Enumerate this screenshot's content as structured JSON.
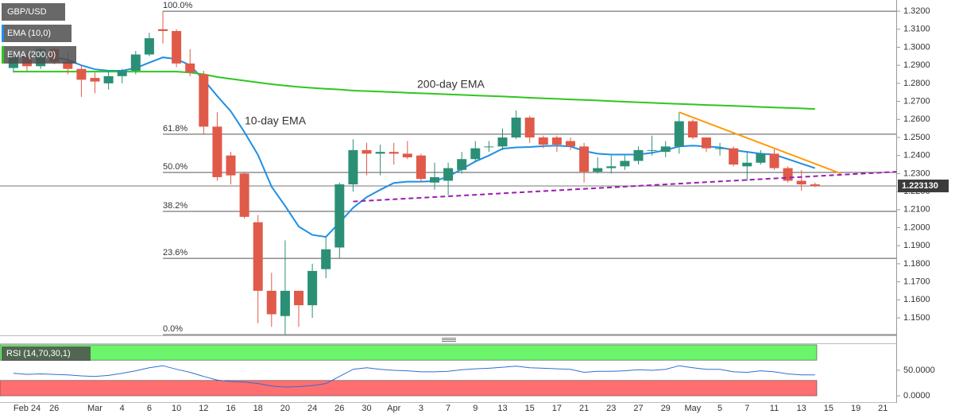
{
  "chart_data": [
    {
      "type": "candlestick",
      "categories": [
        null,
        "Feb 24",
        null,
        "26",
        null,
        null,
        "Mar",
        null,
        "4",
        null,
        "6",
        null,
        "10",
        null,
        "12",
        null,
        "16",
        null,
        "18",
        null,
        "20",
        null,
        "24",
        null,
        "26",
        null,
        "30",
        null,
        "Apr",
        null,
        "3",
        null,
        "7",
        null,
        "9",
        null,
        "13",
        null,
        "15",
        null,
        "17",
        null,
        "21",
        null,
        "23",
        null,
        "27",
        null,
        "29",
        null,
        "May",
        null,
        "5",
        null,
        "7",
        null,
        "11",
        null,
        "13",
        null,
        "15",
        null,
        "19",
        null,
        "21"
      ],
      "series": [
        {
          "name": "GBP/USD",
          "up_color": "#2b8f76",
          "down_color": "#e05a4a",
          "open": [
            1.2885,
            1.295,
            1.2895,
            1.299,
            1.292,
            1.288,
            1.283,
            1.28,
            1.284,
            1.287,
            1.296,
            1.31,
            1.309,
            1.291,
            1.285,
            1.256,
            1.24,
            1.23,
            1.203,
            1.165,
            1.151,
            1.165,
            1.157,
            1.177,
            1.189,
            1.224,
            1.243,
            1.241,
            1.242,
            1.241,
            1.24,
            1.225,
            1.226,
            1.232,
            1.238,
            1.245,
            1.245,
            1.25,
            1.261,
            1.25,
            1.25,
            1.248,
            1.245,
            1.231,
            1.233,
            1.234,
            1.237,
            1.243,
            1.242,
            1.245,
            1.259,
            1.25,
            1.244,
            1.244,
            1.234,
            1.236,
            1.241,
            1.233,
            1.226,
            1.224,
            null,
            null,
            null,
            null,
            null
          ],
          "high": [
            1.298,
            1.2985,
            1.3,
            1.3,
            1.297,
            1.29,
            1.286,
            1.287,
            1.288,
            1.298,
            1.308,
            1.32,
            1.31,
            1.299,
            1.287,
            1.264,
            1.242,
            1.231,
            1.207,
            1.175,
            1.193,
            1.165,
            1.18,
            1.195,
            1.225,
            1.249,
            1.247,
            1.246,
            1.247,
            1.248,
            1.241,
            1.236,
            1.236,
            1.242,
            1.248,
            1.248,
            1.255,
            1.265,
            1.262,
            1.251,
            1.251,
            1.25,
            1.247,
            1.239,
            1.24,
            1.24,
            1.245,
            1.251,
            1.248,
            1.264,
            1.26,
            1.25,
            1.247,
            1.245,
            1.242,
            1.243,
            1.244,
            1.234,
            1.232,
            1.225,
            null,
            null,
            null,
            null,
            null
          ],
          "low": [
            1.286,
            1.287,
            1.288,
            1.2905,
            1.285,
            1.2725,
            1.2745,
            1.2765,
            1.28,
            1.285,
            1.295,
            1.302,
            1.289,
            1.284,
            1.252,
            1.226,
            1.224,
            1.205,
            1.147,
            1.145,
            1.141,
            1.145,
            1.15,
            1.172,
            1.183,
            1.22,
            1.229,
            1.229,
            1.235,
            1.238,
            1.225,
            1.221,
            1.218,
            1.23,
            1.237,
            1.242,
            1.243,
            1.249,
            1.247,
            1.244,
            1.242,
            1.243,
            1.225,
            1.23,
            1.23,
            1.232,
            1.235,
            1.24,
            1.239,
            1.241,
            1.249,
            1.242,
            1.24,
            1.234,
            1.226,
            1.235,
            1.232,
            1.225,
            1.2205,
            1.2225,
            null,
            null,
            null,
            null,
            null
          ],
          "close": [
            1.2955,
            1.2895,
            1.299,
            1.292,
            1.288,
            1.282,
            1.281,
            1.284,
            1.287,
            1.296,
            1.305,
            1.309,
            1.291,
            1.286,
            1.256,
            1.228,
            1.229,
            1.206,
            1.165,
            1.152,
            1.165,
            1.157,
            1.176,
            1.188,
            1.224,
            1.243,
            1.241,
            1.242,
            1.241,
            1.239,
            1.227,
            1.228,
            1.233,
            1.238,
            1.244,
            1.245,
            1.25,
            1.261,
            1.25,
            1.246,
            1.246,
            1.245,
            1.231,
            1.233,
            1.234,
            1.237,
            1.243,
            1.243,
            1.245,
            1.259,
            1.25,
            1.244,
            1.244,
            1.235,
            1.236,
            1.241,
            1.233,
            1.226,
            1.224,
            1.2231,
            null,
            null,
            null,
            null,
            null
          ]
        },
        {
          "name": "EMA (10,0)",
          "color": "#1f8fe5",
          "values": [
            1.2955,
            1.2945,
            1.295,
            1.2945,
            1.293,
            1.29,
            1.2878,
            1.287,
            1.287,
            1.2885,
            1.2915,
            1.2944,
            1.2935,
            1.29,
            1.282,
            1.273,
            1.2645,
            1.253,
            1.2403,
            1.2227,
            1.212,
            1.2006,
            1.196,
            1.1949,
            1.2028,
            1.211,
            1.2169,
            1.221,
            1.2248,
            1.2255,
            1.2255,
            1.2258,
            1.2283,
            1.2325,
            1.2367,
            1.24,
            1.2438,
            1.2445,
            1.2447,
            1.2452,
            1.2455,
            1.245,
            1.2425,
            1.241,
            1.2405,
            1.2405,
            1.2405,
            1.2415,
            1.243,
            1.245,
            1.2455,
            1.245,
            1.2445,
            1.243,
            1.242,
            1.241,
            1.2405,
            1.238,
            1.2355,
            1.233,
            null,
            null,
            null,
            null,
            null
          ]
        },
        {
          "name": "EMA (200,0)",
          "color": "#2fc61f",
          "values": [
            1.2865,
            1.2865,
            1.2865,
            1.2865,
            1.2865,
            1.2865,
            1.2865,
            1.2865,
            1.2865,
            1.2865,
            1.2865,
            1.2865,
            1.2865,
            1.286,
            1.285,
            1.2835,
            1.2825,
            1.2815,
            1.2805,
            1.2795,
            1.2787,
            1.278,
            1.2775,
            1.277,
            1.2766,
            1.276,
            1.2757,
            1.2754,
            1.2751,
            1.2748,
            1.2745,
            1.2742,
            1.2739,
            1.2736,
            1.2733,
            1.273,
            1.2727,
            1.2724,
            1.272,
            1.2717,
            1.2714,
            1.2711,
            1.2708,
            1.2705,
            1.2701,
            1.2698,
            1.2695,
            1.2692,
            1.2689,
            1.2686,
            1.2683,
            1.268,
            1.2678,
            1.2675,
            1.2672,
            1.2669,
            1.2666,
            1.2664,
            1.2661,
            1.2658,
            null,
            null,
            null,
            null,
            null
          ]
        }
      ],
      "annotations": [
        "10-day EMA",
        "200-day EMA"
      ],
      "fib_levels": [
        {
          "value": 1.32,
          "label": "100.0%"
        },
        {
          "value": 1.2518,
          "label": "61.8%"
        },
        {
          "value": 1.2306,
          "label": "50.0%"
        },
        {
          "value": 1.209,
          "label": "38.2%"
        },
        {
          "value": 1.183,
          "label": "23.6%"
        },
        {
          "value": 1.1407,
          "label": "0.0%"
        }
      ],
      "trendlines": [
        {
          "color": "#ff9a0e",
          "dashed": false,
          "points": [
            [
              49,
              1.264
            ],
            [
              60.9,
              1.23
            ]
          ]
        },
        {
          "color": "#9a1db0",
          "dashed": true,
          "points": [
            [
              25,
              1.2145
            ],
            [
              65,
              1.231
            ]
          ]
        }
      ],
      "last_price": {
        "value": 1.22313,
        "label": "1.223130"
      },
      "ylim": [
        1.1403,
        1.3262
      ],
      "yticks": [
        {
          "value": 1.15,
          "label": "1.1500"
        },
        {
          "value": 1.16,
          "label": "1.1600"
        },
        {
          "value": 1.17,
          "label": "1.1700"
        },
        {
          "value": 1.18,
          "label": "1.1800"
        },
        {
          "value": 1.19,
          "label": "1.1900"
        },
        {
          "value": 1.2,
          "label": "1.2000"
        },
        {
          "value": 1.21,
          "label": "1.2100"
        },
        {
          "value": 1.22,
          "label": "1.2200"
        },
        {
          "value": 1.23,
          "label": "1.2300"
        },
        {
          "value": 1.24,
          "label": "1.2400"
        },
        {
          "value": 1.25,
          "label": "1.2500"
        },
        {
          "value": 1.26,
          "label": "1.2600"
        },
        {
          "value": 1.27,
          "label": "1.2700"
        },
        {
          "value": 1.28,
          "label": "1.2800"
        },
        {
          "value": 1.29,
          "label": "1.2900"
        },
        {
          "value": 1.3,
          "label": "1.3000"
        },
        {
          "value": 1.31,
          "label": "1.3100"
        },
        {
          "value": 1.32,
          "label": "1.3200"
        }
      ]
    },
    {
      "type": "line",
      "name": "RSI (14,70,30,1)",
      "color": "#2f6fd6",
      "values": [
        44,
        42,
        43,
        42,
        41,
        39,
        38,
        40,
        44,
        49,
        55,
        59,
        52,
        46,
        38,
        31,
        28,
        27,
        24,
        19,
        17,
        18,
        20,
        24,
        38,
        52,
        55,
        52,
        50,
        49,
        47,
        47,
        48,
        51,
        53,
        54,
        56,
        58,
        55,
        54,
        53,
        52,
        46,
        48,
        48,
        49,
        51,
        50,
        52,
        59,
        55,
        52,
        52,
        47,
        46,
        49,
        47,
        43,
        41,
        41,
        null,
        null,
        null,
        null,
        null
      ],
      "bands": [
        {
          "range": [
            70,
            100
          ],
          "color": "#6af56a"
        },
        {
          "range": [
            0,
            30
          ],
          "color": "#ff6f6f"
        }
      ],
      "ylim": [
        -14,
        103
      ],
      "yticks": [
        {
          "value": 50,
          "label": "50.0000"
        },
        {
          "value": 0,
          "label": "0.0000"
        }
      ]
    }
  ]
}
